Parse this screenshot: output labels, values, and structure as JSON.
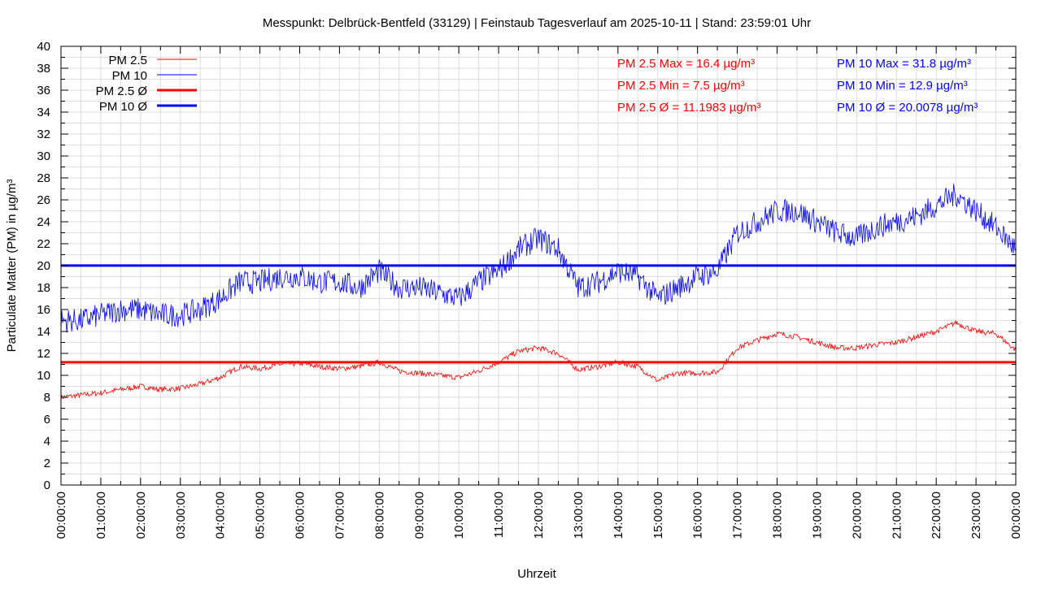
{
  "chart_data": {
    "type": "line",
    "title": "Messpunkt: Delbrück-Bentfeld (33129) | Feinstaub Tagesverlauf am 2025-10-11 | Stand: 23:59:01 Uhr",
    "xlabel": "Uhrzeit",
    "ylabel": "Particulate Matter (PM) in µg/m³",
    "ylim": [
      0,
      40
    ],
    "yticks": [
      "0",
      "2",
      "4",
      "6",
      "8",
      "10",
      "12",
      "14",
      "16",
      "18",
      "20",
      "22",
      "24",
      "26",
      "28",
      "30",
      "32",
      "34",
      "36",
      "38",
      "40"
    ],
    "xticks": [
      "00:00:00",
      "01:00:00",
      "02:00:00",
      "03:00:00",
      "04:00:00",
      "05:00:00",
      "06:00:00",
      "07:00:00",
      "08:00:00",
      "09:00:00",
      "10:00:00",
      "11:00:00",
      "12:00:00",
      "13:00:00",
      "14:00:00",
      "15:00:00",
      "16:00:00",
      "17:00:00",
      "18:00:00",
      "19:00:00",
      "20:00:00",
      "21:00:00",
      "22:00:00",
      "23:00:00",
      "00:00:00"
    ],
    "x_hours": [
      0,
      0.5,
      1,
      1.5,
      2,
      2.5,
      3,
      3.5,
      4,
      4.5,
      5,
      5.5,
      6,
      6.5,
      7,
      7.5,
      8,
      8.5,
      9,
      9.5,
      10,
      10.5,
      11,
      11.5,
      12,
      12.5,
      13,
      13.5,
      14,
      14.5,
      15,
      15.5,
      16,
      16.5,
      17,
      17.5,
      18,
      18.5,
      19,
      19.5,
      20,
      20.5,
      21,
      21.5,
      22,
      22.5,
      23,
      23.5,
      24
    ],
    "grid": true,
    "legend_position": "top-left",
    "legend": [
      "PM 2.5",
      "PM 10",
      "PM 2.5 Ø",
      "PM 10 Ø"
    ],
    "series": [
      {
        "name": "PM 2.5",
        "color": "#ff0000",
        "values": [
          8,
          8.2,
          8.4,
          8.7,
          9,
          8.7,
          8.8,
          9.2,
          9.8,
          10.8,
          10.6,
          11,
          11.1,
          10.8,
          10.6,
          10.8,
          11.2,
          10.4,
          10.2,
          10,
          9.8,
          10.4,
          11.2,
          12.2,
          12.5,
          12,
          10.5,
          10.8,
          11.2,
          10.8,
          9.5,
          10.2,
          10.2,
          10.3,
          12.5,
          13.2,
          13.8,
          13.5,
          13,
          12.5,
          12.5,
          12.8,
          13,
          13.5,
          14,
          14.8,
          14,
          13.8,
          12.3
        ]
      },
      {
        "name": "PM 10",
        "color": "#0000ff",
        "values": [
          15,
          15,
          15.5,
          16,
          16,
          15.5,
          15.5,
          16,
          17,
          18.5,
          18.5,
          19,
          19,
          18.5,
          18.5,
          18,
          19.5,
          18,
          18,
          17.5,
          17,
          18.5,
          19.5,
          21.5,
          22.5,
          21.5,
          18,
          18.5,
          19.5,
          19,
          17,
          18,
          19,
          19.5,
          23,
          24,
          25,
          25,
          24,
          23,
          22.5,
          23.5,
          24,
          24.5,
          25.5,
          26.5,
          25,
          23.5,
          21.5
        ]
      }
    ],
    "averages": [
      {
        "name": "PM 2.5 Ø",
        "value": 11.1983,
        "color": "#ff0000"
      },
      {
        "name": "PM 10 Ø",
        "value": 20.0078,
        "color": "#0000ff"
      }
    ],
    "annotations": {
      "pm25": [
        "PM 2.5 Max = 16.4 µg/m³",
        "PM 2.5 Min = 7.5 µg/m³",
        "PM 2.5 Ø = 11.1983 µg/m³"
      ],
      "pm10": [
        "PM 10 Max = 31.8 µg/m³",
        "PM 10 Min = 12.9 µg/m³",
        "PM 10 Ø = 20.0078 µg/m³"
      ]
    }
  }
}
